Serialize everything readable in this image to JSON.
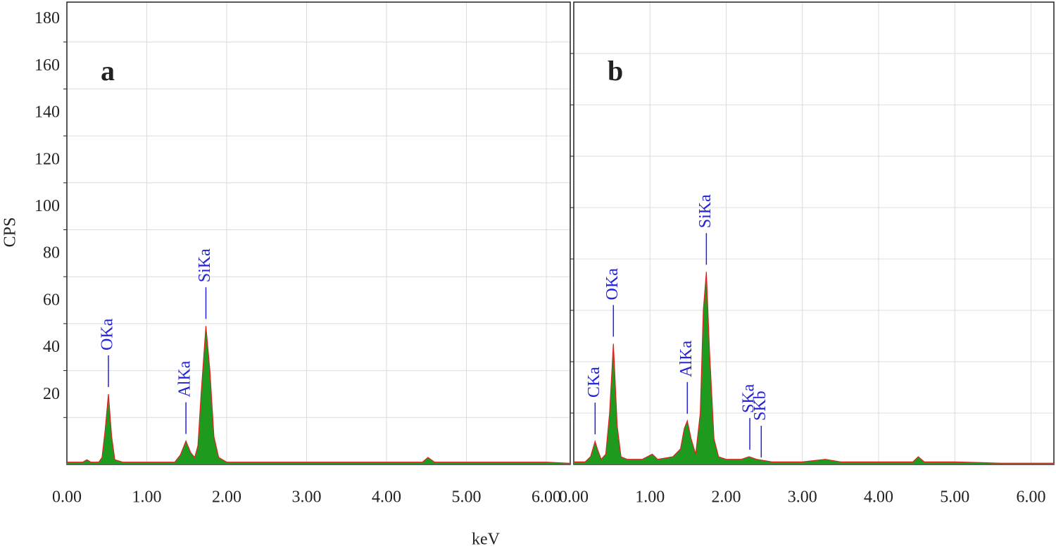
{
  "chart_data": [
    {
      "type": "area",
      "label": "a",
      "x_label": "keV",
      "y_label": "CPS",
      "xlim": [
        0,
        6.3
      ],
      "ylim": [
        0,
        197
      ],
      "xticks": [
        {
          "value": 0,
          "label": "0.00"
        },
        {
          "value": 1,
          "label": "1.00"
        },
        {
          "value": 2,
          "label": "2.00"
        },
        {
          "value": 3,
          "label": "3.00"
        },
        {
          "value": 4,
          "label": "4.00"
        },
        {
          "value": 5,
          "label": "5.00"
        },
        {
          "value": 6,
          "label": "6.00"
        }
      ],
      "yticks": [
        20,
        40,
        60,
        80,
        100,
        120,
        140,
        160,
        180
      ],
      "grid": true,
      "series": [
        {
          "fill_color": "#1e9a1e",
          "line_color": "#e02020",
          "x": [
            0,
            0.2,
            0.25,
            0.3,
            0.4,
            0.44,
            0.48,
            0.52,
            0.56,
            0.6,
            0.7,
            1.0,
            1.2,
            1.35,
            1.42,
            1.49,
            1.55,
            1.6,
            1.64,
            1.68,
            1.74,
            1.79,
            1.84,
            1.9,
            2.0,
            3.0,
            3.3,
            3.4,
            4.0,
            4.45,
            4.52,
            4.6,
            5.0,
            6.0,
            6.3
          ],
          "values": [
            1,
            1,
            2,
            1,
            1,
            3,
            15,
            30,
            12,
            2,
            1,
            1,
            1,
            1,
            4,
            10,
            5,
            3,
            8,
            30,
            59,
            40,
            12,
            3,
            1,
            1,
            1,
            1,
            1,
            1,
            3,
            1,
            1,
            1,
            0.5
          ]
        }
      ],
      "annotations": [
        {
          "text": "OKa",
          "x": 0.52
        },
        {
          "text": "AlKa",
          "x": 1.49
        },
        {
          "text": "SiKa",
          "x": 1.74
        }
      ]
    },
    {
      "type": "area",
      "label": "b",
      "xlim": [
        0,
        6.3
      ],
      "ylim": [
        0,
        180
      ],
      "xticks": [
        {
          "value": 0,
          "label": "0.00"
        },
        {
          "value": 1,
          "label": "1.00"
        },
        {
          "value": 2,
          "label": "2.00"
        },
        {
          "value": 3,
          "label": "3.00"
        },
        {
          "value": 4,
          "label": "4.00"
        },
        {
          "value": 5,
          "label": "5.00"
        },
        {
          "value": 6,
          "label": "6.00"
        }
      ],
      "yticks": [
        20,
        40,
        60,
        80,
        100,
        120,
        140,
        160
      ],
      "grid": true,
      "series": [
        {
          "fill_color": "#1e9a1e",
          "line_color": "#e02020",
          "x": [
            0,
            0.15,
            0.22,
            0.26,
            0.28,
            0.31,
            0.36,
            0.42,
            0.47,
            0.52,
            0.57,
            0.62,
            0.7,
            0.9,
            1.03,
            1.1,
            1.3,
            1.4,
            1.45,
            1.49,
            1.54,
            1.6,
            1.66,
            1.7,
            1.74,
            1.78,
            1.84,
            1.9,
            2.0,
            2.2,
            2.3,
            2.4,
            2.6,
            3.0,
            3.3,
            3.5,
            4.0,
            4.45,
            4.52,
            4.6,
            5.0,
            5.6,
            6.0,
            6.3
          ],
          "values": [
            1,
            1,
            3,
            7,
            9,
            6,
            2,
            4,
            20,
            47,
            15,
            3,
            2,
            2,
            4,
            2,
            3,
            6,
            14,
            17,
            10,
            4,
            20,
            60,
            75,
            45,
            10,
            3,
            2,
            2,
            3,
            2,
            1,
            1,
            2,
            1,
            1,
            1,
            3,
            1,
            1,
            0.5,
            0.5,
            0.5
          ]
        }
      ],
      "annotations": [
        {
          "text": "CKa",
          "x": 0.28
        },
        {
          "text": "OKa",
          "x": 0.52
        },
        {
          "text": "AlKa",
          "x": 1.49
        },
        {
          "text": "SiKa",
          "x": 1.74
        },
        {
          "text": "SKa",
          "x": 2.31
        },
        {
          "text": "SKb",
          "x": 2.46
        }
      ]
    }
  ]
}
